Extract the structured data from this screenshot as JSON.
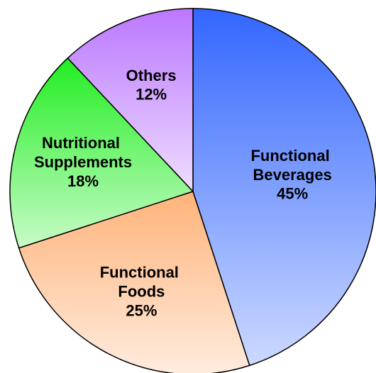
{
  "chart_data": {
    "type": "pie",
    "categories": [
      "Functional Beverages",
      "Functional Foods",
      "Nutritional Supplements",
      "Others"
    ],
    "values": [
      45,
      25,
      18,
      12
    ],
    "value_labels": [
      "45%",
      "25%",
      "18%",
      "12%"
    ],
    "colors": [
      "#3366ff",
      "#ffb37a",
      "#22ee22",
      "#bb77ff"
    ]
  }
}
